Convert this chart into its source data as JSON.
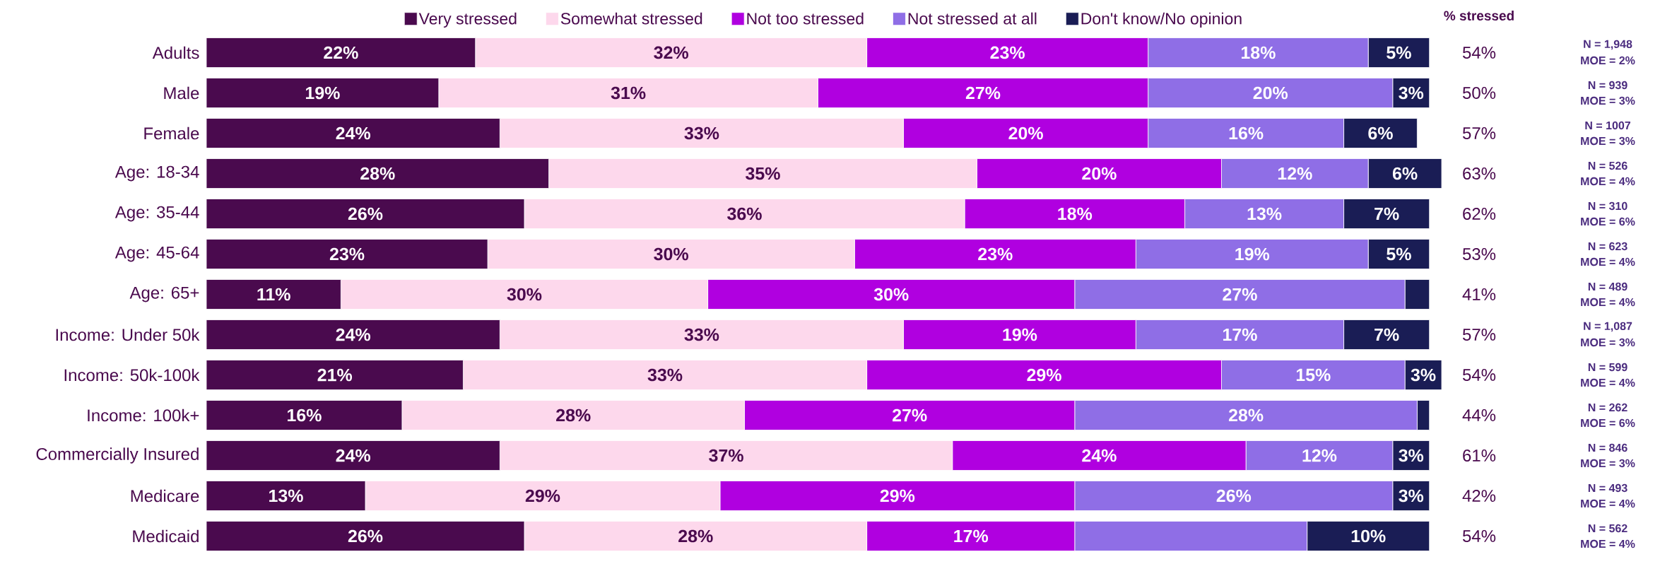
{
  "chart_data": {
    "type": "bar",
    "orientation": "horizontal",
    "stacked": true,
    "legend": "top",
    "categories": [
      "Adults",
      "Male",
      "Female",
      "Age: 18-34",
      "Age: 35-44",
      "Age: 45-64",
      "Age: 65+",
      "Income: Under 50k",
      "Income: 50k-100k",
      "Income: 100k+",
      "Commercially Insured",
      "Medicare",
      "Medicaid"
    ],
    "series": [
      {
        "name": "Very stressed",
        "color": "#4a0a4e",
        "values": [
          22,
          19,
          24,
          28,
          26,
          23,
          11,
          24,
          21,
          16,
          24,
          13,
          26
        ],
        "value_labels": [
          "22%",
          "19%",
          "24%",
          "28%",
          "26%",
          "23%",
          "11%",
          "24%",
          "21%",
          "16%",
          "24%",
          "13%",
          "26%"
        ]
      },
      {
        "name": "Somewhat stressed",
        "color": "#fdd8ec",
        "values": [
          32,
          31,
          33,
          35,
          36,
          30,
          30,
          33,
          33,
          28,
          37,
          29,
          28
        ],
        "value_labels": [
          "32%",
          "31%",
          "33%",
          "35%",
          "36%",
          "30%",
          "30%",
          "33%",
          "33%",
          "28%",
          "37%",
          "29%",
          "28%"
        ]
      },
      {
        "name": "Not too stressed",
        "color": "#b000e0",
        "values": [
          23,
          27,
          20,
          20,
          18,
          23,
          30,
          19,
          29,
          27,
          24,
          29,
          17
        ],
        "value_labels": [
          "23%",
          "27%",
          "20%",
          "20%",
          "18%",
          "23%",
          "30%",
          "19%",
          "29%",
          "27%",
          "24%",
          "29%",
          "17%"
        ]
      },
      {
        "name": "Not stressed at all",
        "color": "#8f6ee6",
        "values": [
          18,
          20,
          16,
          12,
          13,
          19,
          27,
          17,
          15,
          28,
          12,
          26,
          19
        ],
        "value_labels": [
          "18%",
          "20%",
          "16%",
          "12%",
          "13%",
          "19%",
          "27%",
          "17%",
          "15%",
          "28%",
          "12%",
          "26%",
          null
        ]
      },
      {
        "name": "Don't know/No opinion",
        "color": "#1a1d55",
        "values": [
          5,
          3,
          6,
          6,
          7,
          5,
          2,
          7,
          3,
          1,
          3,
          3,
          10
        ],
        "value_labels": [
          "5%",
          "3%",
          "6%",
          "6%",
          "7%",
          "5%",
          null,
          "7%",
          "3%",
          null,
          "3%",
          "3%",
          "10%"
        ]
      }
    ],
    "annotations": [
      "% stressed",
      "54%",
      "50%",
      "57%",
      "63%",
      "62%",
      "53%",
      "41%",
      "57%",
      "54%",
      "44%",
      "61%",
      "42%",
      "54%",
      "N = 1,948",
      "N = 939",
      "N = 1007",
      "N = 526",
      "N = 310",
      "N = 623",
      "N = 489",
      "N = 1,087",
      "N = 599",
      "N = 262",
      "N = 846",
      "N = 493",
      "N = 562",
      "MOE = 2%",
      "MOE = 3%",
      "MOE = 3%",
      "MOE = 4%",
      "MOE = 6%",
      "MOE = 4%",
      "MOE = 4%",
      "MOE = 3%",
      "MOE = 4%",
      "MOE = 6%",
      "MOE = 3%",
      "MOE = 4%",
      "MOE = 4%"
    ]
  }
}
